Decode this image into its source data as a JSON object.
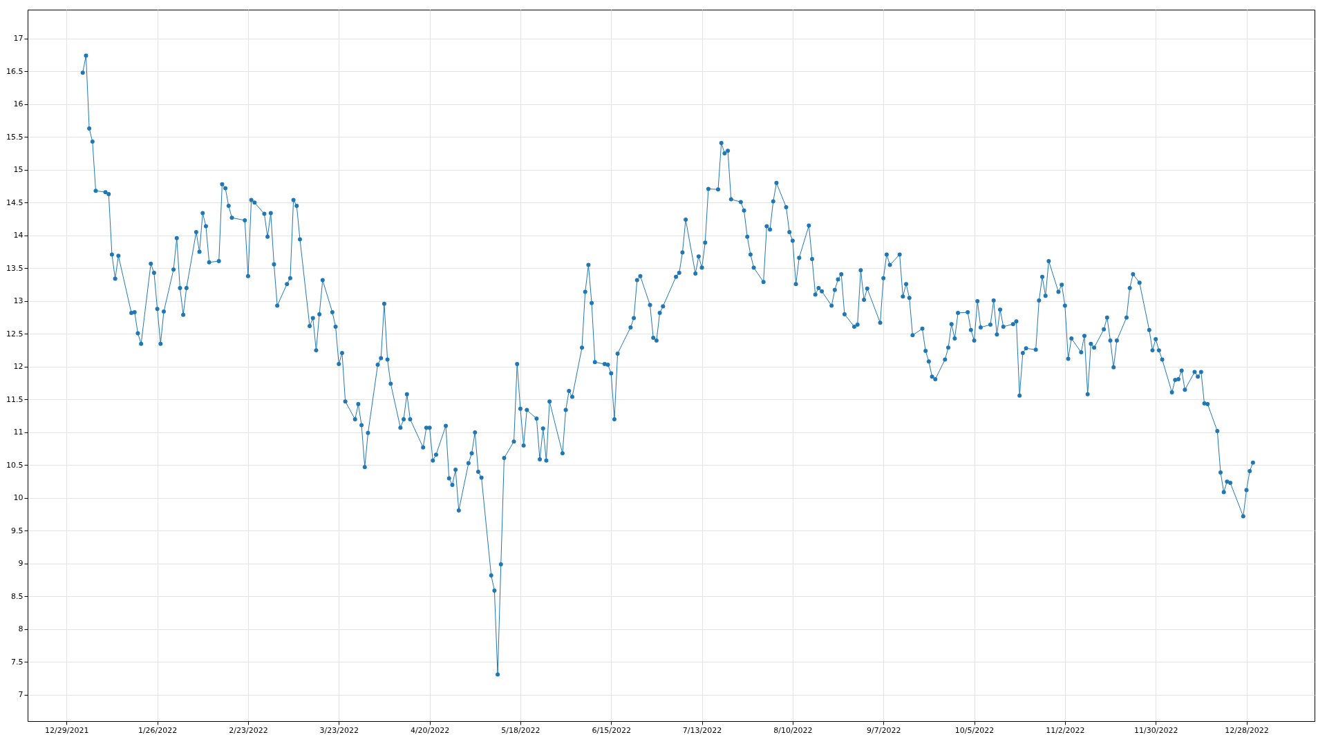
{
  "chart_data": {
    "type": "line",
    "marker": "circle",
    "line_style": "solid",
    "grid": true,
    "xlim": [
      "2021-12-17",
      "2023-01-18"
    ],
    "ylim": [
      6.6,
      17.44
    ],
    "xticks": [
      {
        "value": "2021-12-29",
        "label": "12/29/2021"
      },
      {
        "value": "2022-01-26",
        "label": "1/26/2022"
      },
      {
        "value": "2022-02-23",
        "label": "2/23/2022"
      },
      {
        "value": "2022-03-23",
        "label": "3/23/2022"
      },
      {
        "value": "2022-04-20",
        "label": "4/20/2022"
      },
      {
        "value": "2022-05-18",
        "label": "5/18/2022"
      },
      {
        "value": "2022-06-15",
        "label": "6/15/2022"
      },
      {
        "value": "2022-07-13",
        "label": "7/13/2022"
      },
      {
        "value": "2022-08-10",
        "label": "8/10/2022"
      },
      {
        "value": "2022-09-07",
        "label": "9/7/2022"
      },
      {
        "value": "2022-10-05",
        "label": "10/5/2022"
      },
      {
        "value": "2022-11-02",
        "label": "11/2/2022"
      },
      {
        "value": "2022-11-30",
        "label": "11/30/2022"
      },
      {
        "value": "2022-12-28",
        "label": "12/28/2022"
      }
    ],
    "yticks": [
      7,
      7.5,
      8,
      8.5,
      9,
      9.5,
      10,
      10.5,
      11,
      11.5,
      12,
      12.5,
      13,
      13.5,
      14,
      14.5,
      15,
      15.5,
      16,
      16.5,
      17
    ],
    "x": [
      "2022-01-03",
      "2022-01-04",
      "2022-01-05",
      "2022-01-06",
      "2022-01-07",
      "2022-01-10",
      "2022-01-11",
      "2022-01-12",
      "2022-01-13",
      "2022-01-14",
      "2022-01-18",
      "2022-01-19",
      "2022-01-20",
      "2022-01-21",
      "2022-01-24",
      "2022-01-25",
      "2022-01-26",
      "2022-01-27",
      "2022-01-28",
      "2022-01-31",
      "2022-02-01",
      "2022-02-02",
      "2022-02-03",
      "2022-02-04",
      "2022-02-07",
      "2022-02-08",
      "2022-02-09",
      "2022-02-10",
      "2022-02-11",
      "2022-02-14",
      "2022-02-15",
      "2022-02-16",
      "2022-02-17",
      "2022-02-18",
      "2022-02-22",
      "2022-02-23",
      "2022-02-24",
      "2022-02-25",
      "2022-02-28",
      "2022-03-01",
      "2022-03-02",
      "2022-03-03",
      "2022-03-04",
      "2022-03-07",
      "2022-03-08",
      "2022-03-09",
      "2022-03-10",
      "2022-03-11",
      "2022-03-14",
      "2022-03-15",
      "2022-03-16",
      "2022-03-17",
      "2022-03-18",
      "2022-03-21",
      "2022-03-22",
      "2022-03-23",
      "2022-03-24",
      "2022-03-25",
      "2022-03-28",
      "2022-03-29",
      "2022-03-30",
      "2022-03-31",
      "2022-04-01",
      "2022-04-04",
      "2022-04-05",
      "2022-04-06",
      "2022-04-07",
      "2022-04-08",
      "2022-04-11",
      "2022-04-12",
      "2022-04-13",
      "2022-04-14",
      "2022-04-18",
      "2022-04-19",
      "2022-04-20",
      "2022-04-21",
      "2022-04-22",
      "2022-04-25",
      "2022-04-26",
      "2022-04-27",
      "2022-04-28",
      "2022-04-29",
      "2022-05-02",
      "2022-05-03",
      "2022-05-04",
      "2022-05-05",
      "2022-05-06",
      "2022-05-09",
      "2022-05-10",
      "2022-05-11",
      "2022-05-12",
      "2022-05-13",
      "2022-05-16",
      "2022-05-17",
      "2022-05-18",
      "2022-05-19",
      "2022-05-20",
      "2022-05-23",
      "2022-05-24",
      "2022-05-25",
      "2022-05-26",
      "2022-05-27",
      "2022-05-31",
      "2022-06-01",
      "2022-06-02",
      "2022-06-03",
      "2022-06-06",
      "2022-06-07",
      "2022-06-08",
      "2022-06-09",
      "2022-06-10",
      "2022-06-13",
      "2022-06-14",
      "2022-06-15",
      "2022-06-16",
      "2022-06-17",
      "2022-06-21",
      "2022-06-22",
      "2022-06-23",
      "2022-06-24",
      "2022-06-27",
      "2022-06-28",
      "2022-06-29",
      "2022-06-30",
      "2022-07-01",
      "2022-07-05",
      "2022-07-06",
      "2022-07-07",
      "2022-07-08",
      "2022-07-11",
      "2022-07-12",
      "2022-07-13",
      "2022-07-14",
      "2022-07-15",
      "2022-07-18",
      "2022-07-19",
      "2022-07-20",
      "2022-07-21",
      "2022-07-22",
      "2022-07-25",
      "2022-07-26",
      "2022-07-27",
      "2022-07-28",
      "2022-07-29",
      "2022-08-01",
      "2022-08-02",
      "2022-08-03",
      "2022-08-04",
      "2022-08-05",
      "2022-08-08",
      "2022-08-09",
      "2022-08-10",
      "2022-08-11",
      "2022-08-12",
      "2022-08-15",
      "2022-08-16",
      "2022-08-17",
      "2022-08-18",
      "2022-08-19",
      "2022-08-22",
      "2022-08-23",
      "2022-08-24",
      "2022-08-25",
      "2022-08-26",
      "2022-08-29",
      "2022-08-30",
      "2022-08-31",
      "2022-09-01",
      "2022-09-02",
      "2022-09-06",
      "2022-09-07",
      "2022-09-08",
      "2022-09-09",
      "2022-09-12",
      "2022-09-13",
      "2022-09-14",
      "2022-09-15",
      "2022-09-16",
      "2022-09-19",
      "2022-09-20",
      "2022-09-21",
      "2022-09-22",
      "2022-09-23",
      "2022-09-26",
      "2022-09-27",
      "2022-09-28",
      "2022-09-29",
      "2022-09-30",
      "2022-10-03",
      "2022-10-04",
      "2022-10-05",
      "2022-10-06",
      "2022-10-07",
      "2022-10-10",
      "2022-10-11",
      "2022-10-12",
      "2022-10-13",
      "2022-10-14",
      "2022-10-17",
      "2022-10-18",
      "2022-10-19",
      "2022-10-20",
      "2022-10-21",
      "2022-10-24",
      "2022-10-25",
      "2022-10-26",
      "2022-10-27",
      "2022-10-28",
      "2022-10-31",
      "2022-11-01",
      "2022-11-02",
      "2022-11-03",
      "2022-11-04",
      "2022-11-07",
      "2022-11-08",
      "2022-11-09",
      "2022-11-10",
      "2022-11-11",
      "2022-11-14",
      "2022-11-15",
      "2022-11-16",
      "2022-11-17",
      "2022-11-18",
      "2022-11-21",
      "2022-11-22",
      "2022-11-23",
      "2022-11-25",
      "2022-11-28",
      "2022-11-29",
      "2022-11-30",
      "2022-12-01",
      "2022-12-02",
      "2022-12-05",
      "2022-12-06",
      "2022-12-07",
      "2022-12-08",
      "2022-12-09",
      "2022-12-12",
      "2022-12-13",
      "2022-12-14",
      "2022-12-15",
      "2022-12-16",
      "2022-12-19",
      "2022-12-20",
      "2022-12-21",
      "2022-12-22",
      "2022-12-23",
      "2022-12-27",
      "2022-12-28",
      "2022-12-29",
      "2022-12-30"
    ],
    "series": [
      {
        "color": "#1f77b4",
        "values": [
          16.48,
          16.74,
          15.63,
          15.43,
          14.68,
          14.66,
          14.63,
          13.71,
          13.34,
          13.69,
          12.82,
          12.83,
          12.51,
          12.35,
          13.57,
          13.43,
          12.88,
          12.35,
          12.84,
          13.48,
          13.96,
          13.2,
          12.79,
          13.2,
          14.05,
          13.75,
          14.34,
          14.14,
          13.59,
          13.61,
          14.78,
          14.72,
          14.45,
          14.27,
          14.23,
          13.38,
          14.54,
          14.5,
          14.33,
          13.98,
          14.34,
          13.56,
          12.93,
          13.26,
          13.35,
          14.54,
          14.45,
          13.94,
          12.62,
          12.74,
          12.25,
          12.8,
          13.32,
          12.83,
          12.61,
          12.04,
          12.21,
          11.47,
          11.2,
          11.43,
          11.11,
          10.47,
          10.99,
          12.03,
          12.13,
          12.96,
          12.11,
          11.74,
          11.07,
          11.2,
          11.58,
          11.2,
          10.77,
          11.07,
          11.07,
          10.57,
          10.66,
          11.1,
          10.3,
          10.2,
          10.43,
          9.81,
          10.53,
          10.68,
          11.0,
          10.4,
          10.31,
          8.82,
          8.59,
          7.31,
          8.99,
          10.61,
          10.86,
          12.04,
          11.36,
          10.8,
          11.34,
          11.21,
          10.59,
          11.06,
          10.57,
          11.47,
          10.68,
          11.34,
          11.63,
          11.54,
          12.29,
          13.14,
          13.55,
          12.97,
          12.07,
          12.04,
          12.03,
          11.9,
          11.2,
          12.2,
          12.6,
          12.74,
          13.32,
          13.38,
          12.94,
          12.44,
          12.4,
          12.82,
          12.92,
          13.37,
          13.43,
          13.74,
          14.24,
          13.42,
          13.68,
          13.51,
          13.89,
          14.71,
          14.7,
          15.41,
          15.25,
          15.29,
          14.55,
          14.51,
          14.38,
          13.98,
          13.71,
          13.51,
          13.29,
          14.14,
          14.09,
          14.52,
          14.8,
          14.43,
          14.05,
          13.92,
          13.26,
          13.66,
          14.15,
          13.64,
          13.1,
          13.2,
          13.15,
          12.93,
          13.17,
          13.33,
          13.41,
          12.8,
          12.61,
          12.64,
          13.47,
          13.02,
          13.19,
          12.67,
          13.35,
          13.71,
          13.55,
          13.71,
          13.07,
          13.26,
          13.05,
          12.48,
          12.58,
          12.24,
          12.08,
          11.85,
          11.81,
          12.11,
          12.29,
          12.65,
          12.43,
          12.82,
          12.83,
          12.56,
          12.4,
          13.0,
          12.6,
          12.64,
          13.01,
          12.49,
          12.87,
          12.61,
          12.65,
          12.69,
          11.56,
          12.21,
          12.28,
          12.26,
          13.01,
          13.37,
          13.08,
          13.61,
          13.14,
          13.25,
          12.93,
          12.12,
          12.43,
          12.22,
          12.47,
          11.58,
          12.35,
          12.29,
          12.57,
          12.75,
          12.4,
          11.99,
          12.4,
          12.75,
          13.2,
          13.41,
          13.28,
          12.56,
          12.25,
          12.42,
          12.25,
          12.11,
          11.61,
          11.8,
          11.81,
          11.94,
          11.65,
          11.92,
          11.85,
          11.92,
          11.44,
          11.43,
          11.02,
          10.39,
          10.09,
          10.25,
          10.23,
          9.72,
          10.12,
          10.41,
          10.54
        ]
      }
    ]
  }
}
